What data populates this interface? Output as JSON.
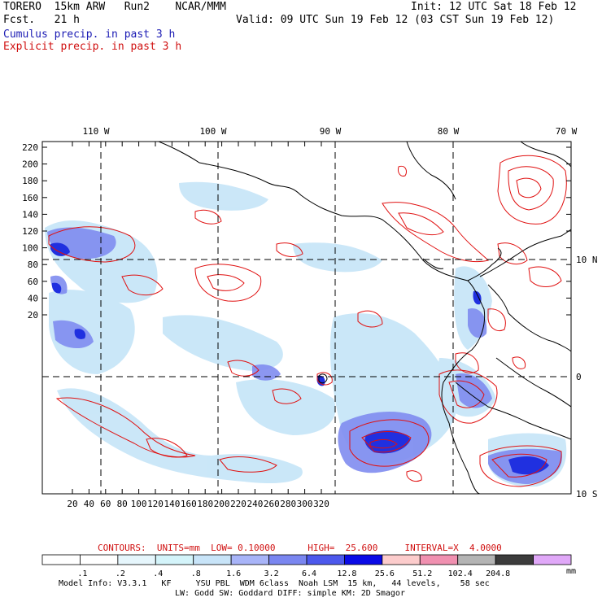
{
  "header": {
    "model_line": "TORERO  15km ARW   Run2    NCAR/MMM",
    "fcst_line": "Fcst.   21 h",
    "init_line": "Init: 12 UTC Sat 18 Feb 12",
    "valid_line": "Valid: 09 UTC Sun 19 Feb 12 (03 CST Sun 19 Feb 12)",
    "cumulus_label": "Cumulus precip. in past 3 h",
    "explicit_label": "Explicit precip. in past 3 h"
  },
  "map": {
    "top_lon_labels": [
      "110 W",
      "100 W",
      "90 W",
      "80 W",
      "70 W"
    ],
    "right_lat_labels": [
      "10 N",
      "0",
      "10 S"
    ],
    "y_ticks": [
      "220",
      "200",
      "180",
      "160",
      "140",
      "120",
      "100",
      "80",
      "60",
      "40",
      "20"
    ],
    "x_ticks": [
      "20",
      "40",
      "60",
      "80",
      "100",
      "120",
      "140",
      "160",
      "180",
      "200",
      "220",
      "240",
      "260",
      "280",
      "300",
      "320"
    ],
    "colors": {
      "cumulus_light": "#c8e6f8",
      "cumulus_mid": "#7f8cf0",
      "cumulus_dark": "#2030e0",
      "explicit_contour": "#e01010",
      "coastline": "#000000"
    }
  },
  "contour_info": {
    "text": "CONTOURS:  UNITS=mm  LOW= 0.10000      HIGH=  25.600     INTERVAL=X  4.0000"
  },
  "colorbar": {
    "labels": [
      ".1",
      ".2",
      ".4",
      ".8",
      "1.6",
      "3.2",
      "6.4",
      "12.8",
      "25.6",
      "51.2",
      "102.4",
      "204.8"
    ],
    "unit": "mm",
    "colors": [
      "#ffffff",
      "#ffffff",
      "#e6f6fc",
      "#d4f4fa",
      "#c8e4f8",
      "#a8b4f8",
      "#7a86f0",
      "#4c58ec",
      "#0a0ae6",
      "#fccccc",
      "#f090b0",
      "#b4b4b4",
      "#3c3c3c",
      "#e0a8f8"
    ]
  },
  "footer": {
    "line1": "Model Info: V3.3.1   KF     YSU PBL  WDM 6class  Noah LSM  15 km,   44 levels,    58 sec",
    "line2": "LW: Godd SW: Goddard DIFF: simple KM: 2D Smagor"
  }
}
